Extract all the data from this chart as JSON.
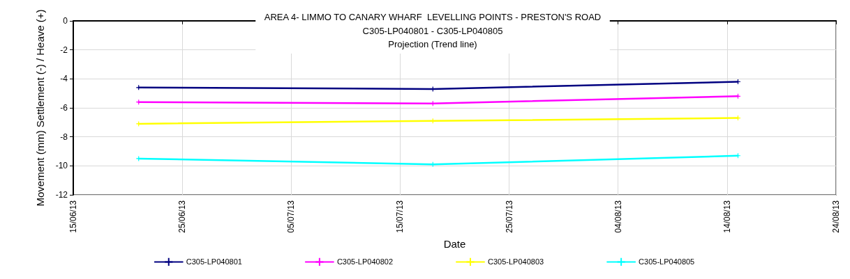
{
  "chart_data": {
    "type": "line",
    "title": "AREA 4- LIMMO TO CANARY WHARF  LEVELLING POINTS - PRESTON'S ROAD",
    "subtitle": "C305-LP040801 - C305-LP040805\nProjection (Trend line)",
    "xlabel": "Date",
    "ylabel": "Movement (mm) Settlement (-) / Heave (+)",
    "x": [
      "--06-21",
      "--07-18",
      "--08-15"
    ],
    "series": [
      {
        "name": "C305-LP040801",
        "color": "#000080",
        "values": [
          -4.6,
          -4.7,
          -4.2
        ]
      },
      {
        "name": "C305-LP040802",
        "color": "#ff00ff",
        "values": [
          -5.6,
          -5.7,
          -5.2
        ]
      },
      {
        "name": "C305-LP040803",
        "color": "#ffff00",
        "values": [
          -7.1,
          -6.9,
          -6.7
        ]
      },
      {
        "name": "C305-LP040805",
        "color": "#00ffff",
        "values": [
          -9.5,
          -9.9,
          -9.3
        ]
      }
    ],
    "xlim": [
      "--06-15",
      "--08-24"
    ],
    "xticks": [
      {
        "value": "--06-15",
        "label": "15/06/13"
      },
      {
        "value": "--06-25",
        "label": "25/06/13"
      },
      {
        "value": "--07-05",
        "label": "05/07/13"
      },
      {
        "value": "--07-15",
        "label": "15/07/13"
      },
      {
        "value": "--07-25",
        "label": "25/07/13"
      },
      {
        "value": "--08-04",
        "label": "04/08/13"
      },
      {
        "value": "--08-14",
        "label": "14/08/13"
      },
      {
        "value": "--08-24",
        "label": "24/08/13"
      }
    ],
    "ylim": [
      -12,
      0
    ],
    "yticks": [
      -12,
      -10,
      -8,
      -6,
      -4,
      -2,
      0
    ],
    "grid": true,
    "legend": "bottom",
    "marker": "cross",
    "line_style": "solid"
  }
}
